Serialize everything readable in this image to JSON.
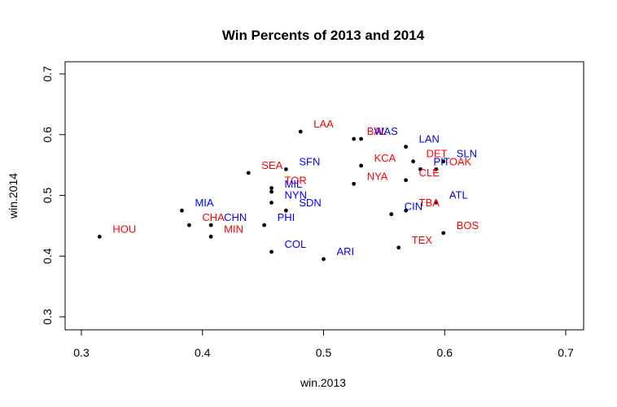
{
  "chart_data": {
    "type": "scatter",
    "title": "Win Percents of 2013 and 2014",
    "xlabel": "win.2013",
    "ylabel": "win.2014",
    "xlim": [
      0.3,
      0.7
    ],
    "ylim": [
      0.3,
      0.7
    ],
    "xticks": [
      "0.3",
      "0.4",
      "0.5",
      "0.6",
      "0.7"
    ],
    "yticks": [
      "0.3",
      "0.4",
      "0.5",
      "0.6",
      "0.7"
    ],
    "grid": false,
    "legend": "none",
    "league_colors": {
      "AL": "#ff0000",
      "NL": "#0000ff"
    },
    "points": [
      {
        "team": "HOU",
        "league": "AL",
        "x": 0.315,
        "y": 0.432
      },
      {
        "team": "MIA",
        "league": "NL",
        "x": 0.383,
        "y": 0.475
      },
      {
        "team": "CHA",
        "league": "AL",
        "x": 0.389,
        "y": 0.451
      },
      {
        "team": "CHN",
        "league": "NL",
        "x": 0.407,
        "y": 0.451
      },
      {
        "team": "MIN",
        "league": "AL",
        "x": 0.407,
        "y": 0.432
      },
      {
        "team": "SEA",
        "league": "AL",
        "x": 0.438,
        "y": 0.537
      },
      {
        "team": "PHI",
        "league": "NL",
        "x": 0.451,
        "y": 0.451
      },
      {
        "team": "COL",
        "league": "NL",
        "x": 0.457,
        "y": 0.407
      },
      {
        "team": "TOR",
        "league": "AL",
        "x": 0.457,
        "y": 0.512
      },
      {
        "team": "MIL",
        "league": "NL",
        "x": 0.457,
        "y": 0.506
      },
      {
        "team": "NYN",
        "league": "NL",
        "x": 0.457,
        "y": 0.488
      },
      {
        "team": "SDN",
        "league": "NL",
        "x": 0.469,
        "y": 0.475
      },
      {
        "team": "SFN",
        "league": "NL",
        "x": 0.469,
        "y": 0.543
      },
      {
        "team": "LAA",
        "league": "AL",
        "x": 0.481,
        "y": 0.605
      },
      {
        "team": "ARI",
        "league": "NL",
        "x": 0.5,
        "y": 0.395
      },
      {
        "team": "NYA",
        "league": "AL",
        "x": 0.525,
        "y": 0.519
      },
      {
        "team": "BAL",
        "league": "AL",
        "x": 0.525,
        "y": 0.593
      },
      {
        "team": "WAS",
        "league": "NL",
        "x": 0.531,
        "y": 0.593
      },
      {
        "team": "KCA",
        "league": "AL",
        "x": 0.531,
        "y": 0.549
      },
      {
        "team": "CIN",
        "league": "NL",
        "x": 0.556,
        "y": 0.469
      },
      {
        "team": "TEX",
        "league": "AL",
        "x": 0.562,
        "y": 0.414
      },
      {
        "team": "TBA",
        "league": "AL",
        "x": 0.568,
        "y": 0.475
      },
      {
        "team": "LAN",
        "league": "NL",
        "x": 0.568,
        "y": 0.58
      },
      {
        "team": "CLE",
        "league": "AL",
        "x": 0.568,
        "y": 0.525
      },
      {
        "team": "DET",
        "league": "AL",
        "x": 0.574,
        "y": 0.556
      },
      {
        "team": "PIT",
        "league": "NL",
        "x": 0.58,
        "y": 0.543
      },
      {
        "team": "OAK",
        "league": "AL",
        "x": 0.593,
        "y": 0.543
      },
      {
        "team": "ATL",
        "league": "NL",
        "x": 0.593,
        "y": 0.488
      },
      {
        "team": "BOS",
        "league": "AL",
        "x": 0.599,
        "y": 0.438
      },
      {
        "team": "SLN",
        "league": "NL",
        "x": 0.599,
        "y": 0.556
      }
    ]
  }
}
